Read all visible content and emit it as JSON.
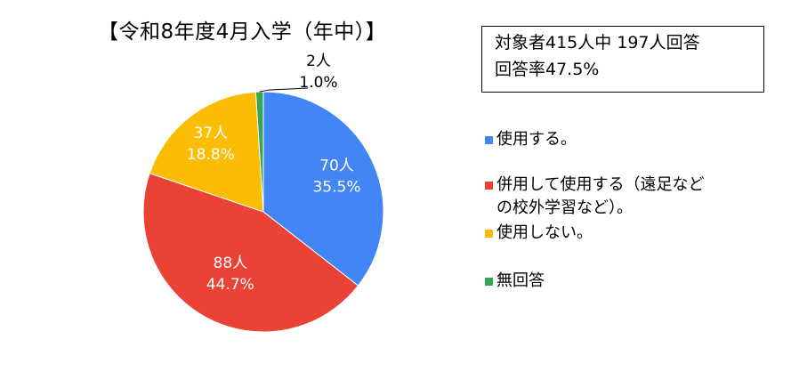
{
  "chart_data": {
    "type": "pie",
    "title": "【令和8年度4月入学（年中）】",
    "summary": {
      "line1": "対象者415人中 197人回答",
      "line2": "回答率47.5%"
    },
    "slices": [
      {
        "label": "使用する。",
        "count_label": "70人",
        "percent_label": "35.5%",
        "value": 70,
        "color": "#4285f4",
        "label_color": "#ffffff"
      },
      {
        "label_lines": [
          "併用して使用する（遠足など",
          "の校外学習など）。"
        ],
        "count_label": "88人",
        "percent_label": "44.7%",
        "value": 88,
        "color": "#ea4335",
        "label_color": "#ffffff"
      },
      {
        "label": "使用しない。",
        "count_label": "37人",
        "percent_label": "18.8%",
        "value": 37,
        "color": "#fbbc04",
        "label_color": "#ffffff"
      },
      {
        "label": "無回答",
        "count_label": "2人",
        "percent_label": "1.0%",
        "value": 2,
        "color": "#34a853",
        "label_color": "#000000"
      }
    ],
    "legend_position": "right"
  }
}
